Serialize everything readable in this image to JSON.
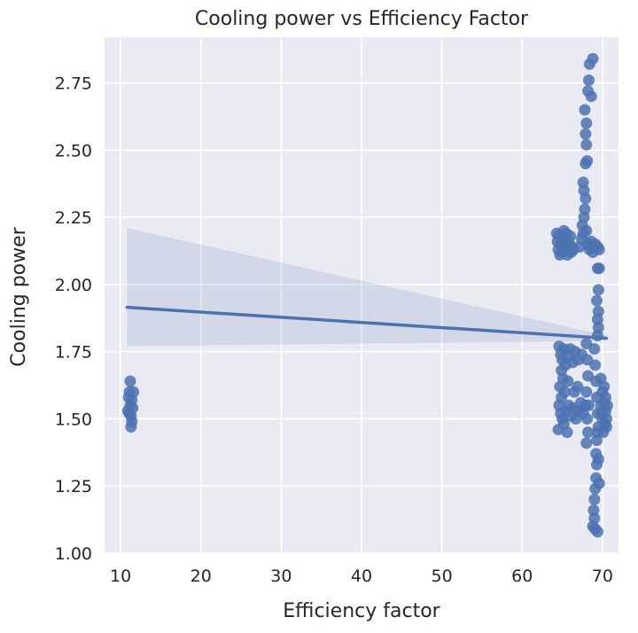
{
  "chart_data": {
    "type": "scatter",
    "title": "Cooling power vs Efficiency Factor",
    "xlabel": "Efficiency factor",
    "ylabel": "Cooling power",
    "xlim": [
      8,
      72
    ],
    "ylim": [
      1.0,
      2.92
    ],
    "xticks": [
      10,
      20,
      30,
      40,
      50,
      60,
      70
    ],
    "yticks": [
      1.0,
      1.25,
      1.5,
      1.75,
      2.0,
      2.25,
      2.5,
      2.75
    ],
    "grid": true,
    "legend": "none",
    "colors": {
      "points": "#4c72b0",
      "line": "#4c72b0",
      "band": "#4c72b0",
      "plot_bg": "#eaeaf2",
      "grid": "#ffffff"
    },
    "regression": {
      "x": [
        10.8,
        70.5
      ],
      "y": [
        1.915,
        1.8
      ],
      "ci_upper": [
        2.21,
        1.81
      ],
      "ci_lower": [
        1.77,
        1.79
      ]
    },
    "points": [
      {
        "x": 10.9,
        "y": 1.53
      },
      {
        "x": 11.0,
        "y": 1.58
      },
      {
        "x": 11.1,
        "y": 1.6
      },
      {
        "x": 11.2,
        "y": 1.64
      },
      {
        "x": 11.2,
        "y": 1.55
      },
      {
        "x": 11.3,
        "y": 1.51
      },
      {
        "x": 11.3,
        "y": 1.47
      },
      {
        "x": 11.4,
        "y": 1.49
      },
      {
        "x": 11.5,
        "y": 1.54
      },
      {
        "x": 11.6,
        "y": 1.6
      },
      {
        "x": 11.1,
        "y": 1.52
      },
      {
        "x": 11.4,
        "y": 1.57
      },
      {
        "x": 64.3,
        "y": 2.19
      },
      {
        "x": 64.4,
        "y": 2.16
      },
      {
        "x": 64.5,
        "y": 2.13
      },
      {
        "x": 64.6,
        "y": 2.18
      },
      {
        "x": 64.8,
        "y": 2.15
      },
      {
        "x": 65.0,
        "y": 2.12
      },
      {
        "x": 65.1,
        "y": 2.17
      },
      {
        "x": 65.3,
        "y": 2.14
      },
      {
        "x": 65.5,
        "y": 2.19
      },
      {
        "x": 65.6,
        "y": 2.11
      },
      {
        "x": 65.8,
        "y": 2.16
      },
      {
        "x": 66.0,
        "y": 2.18
      },
      {
        "x": 66.2,
        "y": 2.14
      },
      {
        "x": 66.4,
        "y": 2.13
      },
      {
        "x": 65.2,
        "y": 2.2
      },
      {
        "x": 64.7,
        "y": 2.11
      },
      {
        "x": 66.1,
        "y": 2.12
      },
      {
        "x": 65.4,
        "y": 2.15
      },
      {
        "x": 67.2,
        "y": 2.14
      },
      {
        "x": 67.4,
        "y": 2.17
      },
      {
        "x": 67.6,
        "y": 2.19
      },
      {
        "x": 67.5,
        "y": 2.22
      },
      {
        "x": 67.7,
        "y": 2.25
      },
      {
        "x": 67.8,
        "y": 2.28
      },
      {
        "x": 67.9,
        "y": 2.32
      },
      {
        "x": 67.7,
        "y": 2.35
      },
      {
        "x": 67.6,
        "y": 2.38
      },
      {
        "x": 68.0,
        "y": 2.2
      },
      {
        "x": 68.2,
        "y": 2.15
      },
      {
        "x": 68.4,
        "y": 2.13
      },
      {
        "x": 68.6,
        "y": 2.16
      },
      {
        "x": 68.8,
        "y": 2.12
      },
      {
        "x": 69.1,
        "y": 2.15
      },
      {
        "x": 69.4,
        "y": 2.14
      },
      {
        "x": 69.6,
        "y": 2.13
      },
      {
        "x": 67.9,
        "y": 2.45
      },
      {
        "x": 68.1,
        "y": 2.46
      },
      {
        "x": 68.0,
        "y": 2.52
      },
      {
        "x": 67.9,
        "y": 2.56
      },
      {
        "x": 68.0,
        "y": 2.6
      },
      {
        "x": 67.8,
        "y": 2.65
      },
      {
        "x": 68.2,
        "y": 2.72
      },
      {
        "x": 68.3,
        "y": 2.76
      },
      {
        "x": 68.6,
        "y": 2.7
      },
      {
        "x": 68.4,
        "y": 2.82
      },
      {
        "x": 68.8,
        "y": 2.84
      },
      {
        "x": 69.4,
        "y": 2.06
      },
      {
        "x": 69.6,
        "y": 2.06
      },
      {
        "x": 69.5,
        "y": 1.98
      },
      {
        "x": 69.3,
        "y": 1.94
      },
      {
        "x": 69.5,
        "y": 1.9
      },
      {
        "x": 69.4,
        "y": 1.87
      },
      {
        "x": 69.5,
        "y": 1.84
      },
      {
        "x": 69.4,
        "y": 1.81
      },
      {
        "x": 64.6,
        "y": 1.77
      },
      {
        "x": 64.8,
        "y": 1.74
      },
      {
        "x": 65.0,
        "y": 1.72
      },
      {
        "x": 65.2,
        "y": 1.76
      },
      {
        "x": 65.4,
        "y": 1.7
      },
      {
        "x": 65.7,
        "y": 1.73
      },
      {
        "x": 66.0,
        "y": 1.76
      },
      {
        "x": 66.3,
        "y": 1.71
      },
      {
        "x": 66.6,
        "y": 1.75
      },
      {
        "x": 67.0,
        "y": 1.72
      },
      {
        "x": 67.4,
        "y": 1.74
      },
      {
        "x": 64.9,
        "y": 1.68
      },
      {
        "x": 65.1,
        "y": 1.65
      },
      {
        "x": 64.7,
        "y": 1.62
      },
      {
        "x": 64.9,
        "y": 1.58
      },
      {
        "x": 65.3,
        "y": 1.6
      },
      {
        "x": 64.6,
        "y": 1.55
      },
      {
        "x": 64.8,
        "y": 1.52
      },
      {
        "x": 65.0,
        "y": 1.5
      },
      {
        "x": 65.2,
        "y": 1.48
      },
      {
        "x": 64.5,
        "y": 1.46
      },
      {
        "x": 65.5,
        "y": 1.53
      },
      {
        "x": 65.8,
        "y": 1.55
      },
      {
        "x": 66.1,
        "y": 1.51
      },
      {
        "x": 66.4,
        "y": 1.54
      },
      {
        "x": 66.7,
        "y": 1.5
      },
      {
        "x": 67.0,
        "y": 1.53
      },
      {
        "x": 67.3,
        "y": 1.56
      },
      {
        "x": 67.6,
        "y": 1.52
      },
      {
        "x": 67.9,
        "y": 1.55
      },
      {
        "x": 65.6,
        "y": 1.45
      },
      {
        "x": 65.7,
        "y": 1.64
      },
      {
        "x": 66.5,
        "y": 1.6
      },
      {
        "x": 66.9,
        "y": 1.62
      },
      {
        "x": 68.0,
        "y": 1.78
      },
      {
        "x": 68.1,
        "y": 1.72
      },
      {
        "x": 68.2,
        "y": 1.66
      },
      {
        "x": 68.0,
        "y": 1.6
      },
      {
        "x": 68.3,
        "y": 1.55
      },
      {
        "x": 68.1,
        "y": 1.5
      },
      {
        "x": 68.2,
        "y": 1.45
      },
      {
        "x": 68.0,
        "y": 1.41
      },
      {
        "x": 69.0,
        "y": 1.76
      },
      {
        "x": 69.1,
        "y": 1.7
      },
      {
        "x": 69.2,
        "y": 1.64
      },
      {
        "x": 69.3,
        "y": 1.58
      },
      {
        "x": 69.4,
        "y": 1.52
      },
      {
        "x": 69.5,
        "y": 1.47
      },
      {
        "x": 69.3,
        "y": 1.42
      },
      {
        "x": 69.2,
        "y": 1.37
      },
      {
        "x": 69.3,
        "y": 1.33
      },
      {
        "x": 69.2,
        "y": 1.28
      },
      {
        "x": 69.1,
        "y": 1.24
      },
      {
        "x": 69.0,
        "y": 1.2
      },
      {
        "x": 68.9,
        "y": 1.16
      },
      {
        "x": 69.0,
        "y": 1.13
      },
      {
        "x": 68.8,
        "y": 1.1
      },
      {
        "x": 69.1,
        "y": 1.09
      },
      {
        "x": 69.4,
        "y": 1.08
      },
      {
        "x": 69.6,
        "y": 1.26
      },
      {
        "x": 69.5,
        "y": 1.35
      },
      {
        "x": 69.4,
        "y": 1.45
      },
      {
        "x": 69.8,
        "y": 1.65
      },
      {
        "x": 70.0,
        "y": 1.6
      },
      {
        "x": 70.2,
        "y": 1.56
      },
      {
        "x": 70.4,
        "y": 1.53
      },
      {
        "x": 70.5,
        "y": 1.5
      },
      {
        "x": 70.3,
        "y": 1.48
      },
      {
        "x": 70.1,
        "y": 1.45
      },
      {
        "x": 69.9,
        "y": 1.52
      },
      {
        "x": 70.6,
        "y": 1.55
      },
      {
        "x": 70.4,
        "y": 1.58
      },
      {
        "x": 69.8,
        "y": 1.55
      },
      {
        "x": 70.0,
        "y": 1.5
      },
      {
        "x": 70.2,
        "y": 1.62
      },
      {
        "x": 70.5,
        "y": 1.47
      }
    ]
  }
}
